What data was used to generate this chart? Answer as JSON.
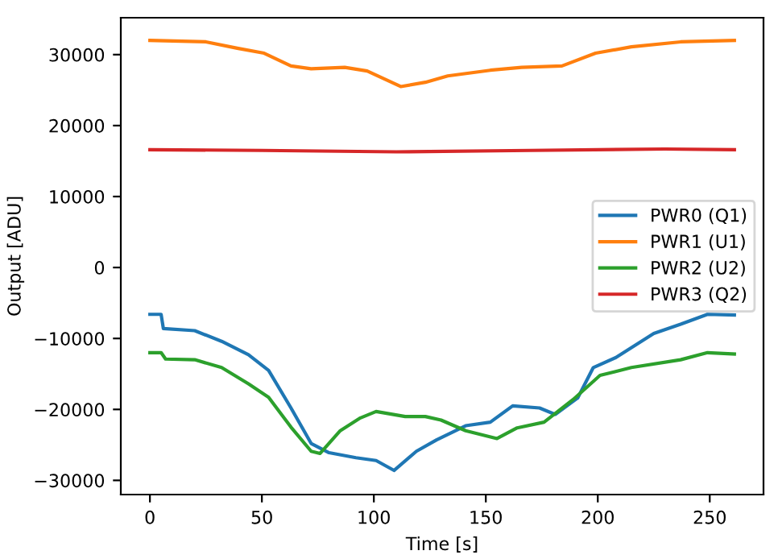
{
  "chart_data": {
    "type": "line",
    "xlabel": "Time [s]",
    "ylabel": "Output [ADU]",
    "xlim": [
      -13,
      274
    ],
    "ylim": [
      -32000,
      35200
    ],
    "xticks": [
      0,
      50,
      100,
      150,
      200,
      250
    ],
    "yticks": [
      {
        "value": -30000,
        "label": "−30000"
      },
      {
        "value": -20000,
        "label": "−20000"
      },
      {
        "value": -10000,
        "label": "−10000"
      },
      0,
      10000,
      20000,
      30000
    ],
    "grid": false,
    "legend": "right",
    "marker": "none",
    "line_style": "solid",
    "series": [
      {
        "name": "PWR0 (Q1)",
        "color": "#1f77b4",
        "x": [
          0,
          5,
          6,
          20,
          32,
          44,
          53,
          63,
          72,
          80,
          92,
          101,
          109,
          119,
          128,
          141,
          152,
          162,
          174,
          181,
          191,
          198,
          208,
          225,
          237,
          249,
          261
        ],
        "values": [
          -6600,
          -6600,
          -8600,
          -8900,
          -10400,
          -12300,
          -14500,
          -19800,
          -24800,
          -26100,
          -26800,
          -27200,
          -28600,
          -25900,
          -24300,
          -22300,
          -21800,
          -19500,
          -19800,
          -20700,
          -18400,
          -14100,
          -12700,
          -9300,
          -8000,
          -6600,
          -6700
        ]
      },
      {
        "name": "PWR1 (U1)",
        "color": "#ff7f0e",
        "x": [
          0,
          25,
          39,
          51,
          63,
          72,
          87,
          97,
          112,
          123,
          133,
          152,
          166,
          184,
          199,
          215,
          237,
          261
        ],
        "values": [
          32000,
          31800,
          30900,
          30200,
          28400,
          28000,
          28200,
          27700,
          25500,
          26100,
          27000,
          27800,
          28200,
          28400,
          30200,
          31100,
          31800,
          32000
        ]
      },
      {
        "name": "PWR2 (U2)",
        "color": "#2ca02c",
        "x": [
          0,
          5,
          7,
          20,
          32,
          44,
          53,
          63,
          72,
          76,
          85,
          94,
          101,
          114,
          123,
          130,
          141,
          155,
          164,
          176,
          189,
          201,
          215,
          237,
          249,
          261
        ],
        "values": [
          -12000,
          -12000,
          -12900,
          -13000,
          -14100,
          -16400,
          -18300,
          -22500,
          -25900,
          -26200,
          -23000,
          -21200,
          -20300,
          -21000,
          -21000,
          -21500,
          -23000,
          -24100,
          -22600,
          -21800,
          -18600,
          -15200,
          -14100,
          -13000,
          -12000,
          -12200
        ]
      },
      {
        "name": "PWR3 (Q2)",
        "color": "#d62728",
        "x": [
          0,
          50,
          110,
          170,
          230,
          261
        ],
        "values": [
          16600,
          16500,
          16300,
          16500,
          16700,
          16600
        ]
      }
    ]
  }
}
